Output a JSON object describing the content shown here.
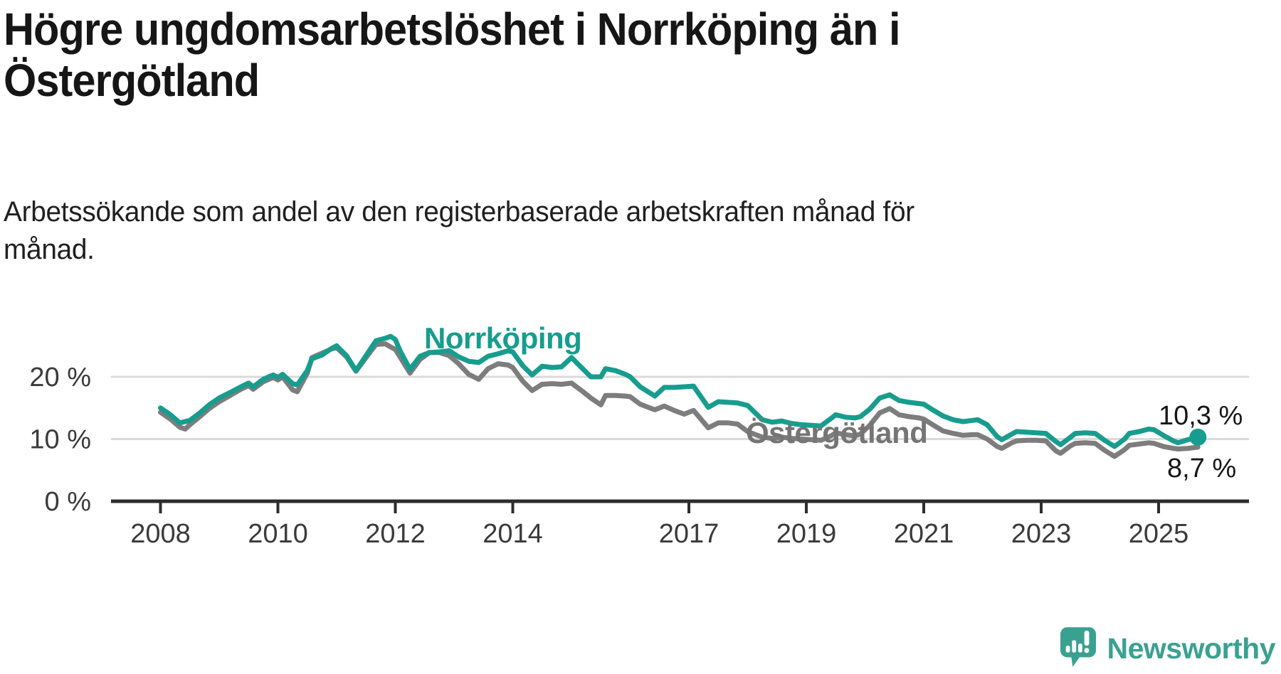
{
  "header": {
    "title": "Högre ungdomsarbetslöshet i Norrköping än i Östergötland",
    "title_lines": [
      "Högre ungdomsarbetslöshet i Norrköping än i",
      "Östergötland"
    ],
    "subtitle": "Arbetssökande som andel av den registerbaserade arbetskraften månad för månad.",
    "subtitle_lines": [
      "Arbetssökande som andel av den registerbaserade arbetskraften månad för",
      "månad."
    ]
  },
  "chart_data": {
    "type": "line",
    "x_unit": "decimal_year",
    "y_unit": "percent",
    "x_axis": {
      "ticks": [
        {
          "value": 2008,
          "label": "2008"
        },
        {
          "value": 2010,
          "label": "2010"
        },
        {
          "value": 2012,
          "label": "2012"
        },
        {
          "value": 2014,
          "label": "2014"
        },
        {
          "value": 2017,
          "label": "2017"
        },
        {
          "value": 2019,
          "label": "2019"
        },
        {
          "value": 2021,
          "label": "2021"
        },
        {
          "value": 2023,
          "label": "2023"
        },
        {
          "value": 2025,
          "label": "2025"
        }
      ],
      "range": [
        2008.0,
        2025.67
      ]
    },
    "y_axis": {
      "ticks": [
        {
          "value": 0,
          "label": "0 %"
        },
        {
          "value": 10,
          "label": "10 %"
        },
        {
          "value": 20,
          "label": "20 %"
        }
      ],
      "range": [
        0,
        30
      ],
      "gridlines": [
        10,
        20
      ]
    },
    "legend_position": "inline-labels",
    "grid": "horizontal-only",
    "series": [
      {
        "name": "Norrköping",
        "color": "#179d8e",
        "end_label": "10,3 %",
        "end_value": 10.3,
        "end_dot": true,
        "points": [
          [
            2008.0,
            15.0
          ],
          [
            2008.17,
            13.9
          ],
          [
            2008.33,
            12.6
          ],
          [
            2008.5,
            13.0
          ],
          [
            2008.67,
            14.2
          ],
          [
            2008.83,
            15.5
          ],
          [
            2009.0,
            16.6
          ],
          [
            2009.17,
            17.4
          ],
          [
            2009.33,
            18.2
          ],
          [
            2009.5,
            19.0
          ],
          [
            2009.58,
            18.4
          ],
          [
            2009.75,
            19.6
          ],
          [
            2009.92,
            20.3
          ],
          [
            2010.0,
            19.9
          ],
          [
            2010.08,
            20.4
          ],
          [
            2010.25,
            18.9
          ],
          [
            2010.33,
            18.7
          ],
          [
            2010.5,
            21.0
          ],
          [
            2010.58,
            22.9
          ],
          [
            2010.75,
            23.5
          ],
          [
            2010.92,
            24.6
          ],
          [
            2011.0,
            25.0
          ],
          [
            2011.17,
            23.4
          ],
          [
            2011.33,
            21.0
          ],
          [
            2011.5,
            23.4
          ],
          [
            2011.67,
            25.8
          ],
          [
            2011.83,
            26.2
          ],
          [
            2011.92,
            26.5
          ],
          [
            2012.0,
            26.0
          ],
          [
            2012.08,
            24.2
          ],
          [
            2012.25,
            21.2
          ],
          [
            2012.42,
            23.3
          ],
          [
            2012.58,
            23.9
          ],
          [
            2012.75,
            24.0
          ],
          [
            2012.92,
            24.2
          ],
          [
            2013.08,
            23.2
          ],
          [
            2013.25,
            22.5
          ],
          [
            2013.42,
            22.3
          ],
          [
            2013.58,
            23.3
          ],
          [
            2013.75,
            23.7
          ],
          [
            2013.92,
            24.2
          ],
          [
            2014.0,
            24.0
          ],
          [
            2014.17,
            21.8
          ],
          [
            2014.33,
            20.3
          ],
          [
            2014.5,
            21.7
          ],
          [
            2014.67,
            21.5
          ],
          [
            2014.83,
            21.6
          ],
          [
            2015.0,
            23.1
          ],
          [
            2015.17,
            21.5
          ],
          [
            2015.33,
            20.0
          ],
          [
            2015.5,
            20.0
          ],
          [
            2015.58,
            21.3
          ],
          [
            2015.75,
            21.0
          ],
          [
            2015.92,
            20.4
          ],
          [
            2016.0,
            20.0
          ],
          [
            2016.17,
            18.4
          ],
          [
            2016.42,
            16.9
          ],
          [
            2016.58,
            18.3
          ],
          [
            2016.75,
            18.3
          ],
          [
            2016.92,
            18.4
          ],
          [
            2017.08,
            18.5
          ],
          [
            2017.33,
            15.1
          ],
          [
            2017.5,
            16.0
          ],
          [
            2017.67,
            15.9
          ],
          [
            2017.83,
            15.8
          ],
          [
            2018.0,
            15.4
          ],
          [
            2018.25,
            13.1
          ],
          [
            2018.42,
            12.7
          ],
          [
            2018.58,
            12.9
          ],
          [
            2018.75,
            12.5
          ],
          [
            2018.92,
            12.3
          ],
          [
            2019.08,
            12.2
          ],
          [
            2019.25,
            12.1
          ],
          [
            2019.42,
            13.3
          ],
          [
            2019.5,
            13.9
          ],
          [
            2019.67,
            13.5
          ],
          [
            2019.83,
            13.4
          ],
          [
            2019.92,
            13.6
          ],
          [
            2020.08,
            14.8
          ],
          [
            2020.25,
            16.6
          ],
          [
            2020.42,
            17.1
          ],
          [
            2020.58,
            16.2
          ],
          [
            2020.75,
            15.9
          ],
          [
            2020.92,
            15.7
          ],
          [
            2021.0,
            15.6
          ],
          [
            2021.17,
            14.6
          ],
          [
            2021.33,
            13.7
          ],
          [
            2021.5,
            13.1
          ],
          [
            2021.67,
            12.8
          ],
          [
            2021.83,
            13.0
          ],
          [
            2021.92,
            13.1
          ],
          [
            2022.08,
            12.3
          ],
          [
            2022.25,
            10.4
          ],
          [
            2022.33,
            9.9
          ],
          [
            2022.5,
            10.8
          ],
          [
            2022.58,
            11.2
          ],
          [
            2022.75,
            11.1
          ],
          [
            2022.92,
            11.0
          ],
          [
            2023.08,
            10.9
          ],
          [
            2023.25,
            9.6
          ],
          [
            2023.33,
            9.1
          ],
          [
            2023.5,
            10.3
          ],
          [
            2023.58,
            10.9
          ],
          [
            2023.75,
            11.0
          ],
          [
            2023.92,
            10.9
          ],
          [
            2024.08,
            9.8
          ],
          [
            2024.25,
            8.8
          ],
          [
            2024.42,
            10.0
          ],
          [
            2024.5,
            10.9
          ],
          [
            2024.67,
            11.2
          ],
          [
            2024.83,
            11.6
          ],
          [
            2024.92,
            11.5
          ],
          [
            2025.08,
            10.6
          ],
          [
            2025.25,
            9.7
          ],
          [
            2025.33,
            9.4
          ],
          [
            2025.5,
            9.9
          ],
          [
            2025.67,
            10.3
          ]
        ]
      },
      {
        "name": "Östergötland",
        "color": "#7d7d7d",
        "end_label": "8,7 %",
        "end_value": 8.7,
        "end_dot": false,
        "points": [
          [
            2008.0,
            14.3
          ],
          [
            2008.17,
            13.2
          ],
          [
            2008.33,
            11.9
          ],
          [
            2008.42,
            11.6
          ],
          [
            2008.5,
            12.3
          ],
          [
            2008.67,
            13.6
          ],
          [
            2008.83,
            14.9
          ],
          [
            2009.0,
            16.0
          ],
          [
            2009.17,
            16.9
          ],
          [
            2009.33,
            17.8
          ],
          [
            2009.5,
            18.6
          ],
          [
            2009.58,
            18.0
          ],
          [
            2009.75,
            19.2
          ],
          [
            2009.92,
            19.9
          ],
          [
            2010.0,
            19.5
          ],
          [
            2010.08,
            20.0
          ],
          [
            2010.25,
            17.9
          ],
          [
            2010.33,
            17.6
          ],
          [
            2010.5,
            20.6
          ],
          [
            2010.58,
            23.1
          ],
          [
            2010.75,
            23.8
          ],
          [
            2010.92,
            24.5
          ],
          [
            2011.0,
            24.7
          ],
          [
            2011.17,
            23.2
          ],
          [
            2011.33,
            20.9
          ],
          [
            2011.5,
            23.1
          ],
          [
            2011.67,
            25.2
          ],
          [
            2011.83,
            25.3
          ],
          [
            2011.92,
            24.8
          ],
          [
            2012.0,
            24.4
          ],
          [
            2012.08,
            23.2
          ],
          [
            2012.25,
            20.6
          ],
          [
            2012.42,
            22.8
          ],
          [
            2012.58,
            23.9
          ],
          [
            2012.75,
            23.9
          ],
          [
            2012.92,
            23.4
          ],
          [
            2013.08,
            22.1
          ],
          [
            2013.25,
            20.4
          ],
          [
            2013.42,
            19.6
          ],
          [
            2013.58,
            21.3
          ],
          [
            2013.75,
            22.1
          ],
          [
            2013.92,
            21.9
          ],
          [
            2014.0,
            21.5
          ],
          [
            2014.17,
            19.3
          ],
          [
            2014.33,
            17.8
          ],
          [
            2014.5,
            18.8
          ],
          [
            2014.67,
            18.9
          ],
          [
            2014.83,
            18.8
          ],
          [
            2015.0,
            19.0
          ],
          [
            2015.17,
            17.8
          ],
          [
            2015.33,
            16.6
          ],
          [
            2015.5,
            15.5
          ],
          [
            2015.58,
            17.0
          ],
          [
            2015.75,
            17.0
          ],
          [
            2015.92,
            16.9
          ],
          [
            2016.0,
            16.8
          ],
          [
            2016.17,
            15.6
          ],
          [
            2016.42,
            14.7
          ],
          [
            2016.58,
            15.3
          ],
          [
            2016.75,
            14.6
          ],
          [
            2016.92,
            14.0
          ],
          [
            2017.08,
            14.6
          ],
          [
            2017.33,
            11.8
          ],
          [
            2017.5,
            12.6
          ],
          [
            2017.67,
            12.6
          ],
          [
            2017.83,
            12.4
          ],
          [
            2018.0,
            11.2
          ],
          [
            2018.25,
            10.3
          ],
          [
            2018.42,
            10.1
          ],
          [
            2018.58,
            10.3
          ],
          [
            2018.75,
            10.1
          ],
          [
            2018.92,
            10.0
          ],
          [
            2019.08,
            9.9
          ],
          [
            2019.25,
            9.8
          ],
          [
            2019.42,
            10.5
          ],
          [
            2019.5,
            11.0
          ],
          [
            2019.67,
            10.7
          ],
          [
            2019.83,
            10.5
          ],
          [
            2019.92,
            10.8
          ],
          [
            2020.08,
            12.2
          ],
          [
            2020.25,
            14.2
          ],
          [
            2020.42,
            14.9
          ],
          [
            2020.58,
            13.9
          ],
          [
            2020.75,
            13.6
          ],
          [
            2020.92,
            13.4
          ],
          [
            2021.0,
            13.2
          ],
          [
            2021.17,
            12.2
          ],
          [
            2021.33,
            11.3
          ],
          [
            2021.5,
            10.9
          ],
          [
            2021.67,
            10.6
          ],
          [
            2021.83,
            10.7
          ],
          [
            2021.92,
            10.7
          ],
          [
            2022.08,
            10.0
          ],
          [
            2022.25,
            8.8
          ],
          [
            2022.33,
            8.5
          ],
          [
            2022.5,
            9.4
          ],
          [
            2022.58,
            9.7
          ],
          [
            2022.75,
            9.8
          ],
          [
            2022.92,
            9.8
          ],
          [
            2023.08,
            9.7
          ],
          [
            2023.25,
            8.1
          ],
          [
            2023.33,
            7.7
          ],
          [
            2023.5,
            8.9
          ],
          [
            2023.58,
            9.3
          ],
          [
            2023.75,
            9.4
          ],
          [
            2023.92,
            9.3
          ],
          [
            2024.08,
            8.2
          ],
          [
            2024.25,
            7.2
          ],
          [
            2024.42,
            8.3
          ],
          [
            2024.5,
            9.0
          ],
          [
            2024.67,
            9.2
          ],
          [
            2024.83,
            9.4
          ],
          [
            2024.92,
            9.3
          ],
          [
            2025.08,
            8.8
          ],
          [
            2025.25,
            8.5
          ],
          [
            2025.33,
            8.4
          ],
          [
            2025.5,
            8.5
          ],
          [
            2025.67,
            8.7
          ]
        ]
      }
    ]
  },
  "footer": {
    "logo_text": "Newsworthy"
  },
  "colors": {
    "accent_teal": "#179d8e",
    "series_gray": "#7d7d7d",
    "series_gray_label": "#757575",
    "logo_teal": "#3aa191",
    "gridline": "#dadada",
    "axis": "#2d2d2d",
    "tick_label": "#3a3a3a",
    "title_text": "#161616"
  }
}
